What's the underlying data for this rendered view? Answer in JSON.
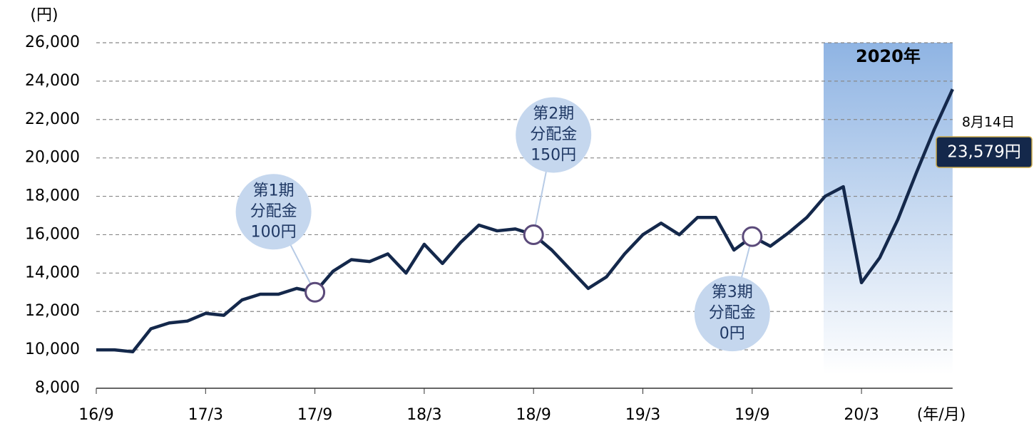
{
  "chart_data": {
    "type": "line",
    "y_unit": "(円)",
    "x_unit": "(年/月)",
    "x": [
      "16/9",
      "16/10",
      "16/11",
      "16/12",
      "17/1",
      "17/2",
      "17/3",
      "17/4",
      "17/5",
      "17/6",
      "17/7",
      "17/8",
      "17/9",
      "17/10",
      "17/11",
      "17/12",
      "18/1",
      "18/2",
      "18/3",
      "18/4",
      "18/5",
      "18/6",
      "18/7",
      "18/8",
      "18/9",
      "18/10",
      "18/11",
      "18/12",
      "19/1",
      "19/2",
      "19/3",
      "19/4",
      "19/5",
      "19/6",
      "19/7",
      "19/8",
      "19/9",
      "19/10",
      "19/11",
      "19/12",
      "20/1",
      "20/2",
      "20/3",
      "20/4",
      "20/5",
      "20/6",
      "20/7",
      "20/8"
    ],
    "series": [
      {
        "color": "#14284b",
        "values": [
          10000,
          10000,
          9900,
          11100,
          11400,
          11500,
          11900,
          11800,
          12600,
          12900,
          12900,
          13200,
          13000,
          14100,
          14700,
          14600,
          15000,
          14000,
          15500,
          14500,
          15600,
          16500,
          16200,
          16300,
          16000,
          15200,
          14200,
          13200,
          13800,
          15000,
          16000,
          16600,
          16000,
          16900,
          16900,
          15200,
          15900,
          15400,
          16100,
          16900,
          18000,
          18500,
          13500,
          14800,
          16800,
          19200,
          21500,
          23579
        ],
        "value_labels": {
          "47": "23,579円"
        }
      }
    ],
    "end_date": "8月14日",
    "ylim": [
      8000,
      26000
    ],
    "yticks": [
      {
        "value": 8000,
        "label": "8,000"
      },
      {
        "value": 10000,
        "label": "10,000"
      },
      {
        "value": 12000,
        "label": "12,000"
      },
      {
        "value": 14000,
        "label": "14,000"
      },
      {
        "value": 16000,
        "label": "16,000"
      },
      {
        "value": 18000,
        "label": "18,000"
      },
      {
        "value": 20000,
        "label": "20,000"
      },
      {
        "value": 22000,
        "label": "22,000"
      },
      {
        "value": 24000,
        "label": "24,000"
      },
      {
        "value": 26000,
        "label": "26,000"
      }
    ],
    "grid": true,
    "highlight": {
      "label": "2020年",
      "from": "20/1",
      "to": "20/8",
      "color": "#8fb4e3"
    },
    "annotations": [
      {
        "x": "17/9",
        "lines": [
          "第1期",
          "分配金",
          "100円"
        ]
      },
      {
        "x": "18/9",
        "lines": [
          "第2期",
          "分配金",
          "150円"
        ]
      },
      {
        "x": "19/9",
        "lines": [
          "第3期",
          "分配金",
          "0円"
        ]
      }
    ]
  }
}
